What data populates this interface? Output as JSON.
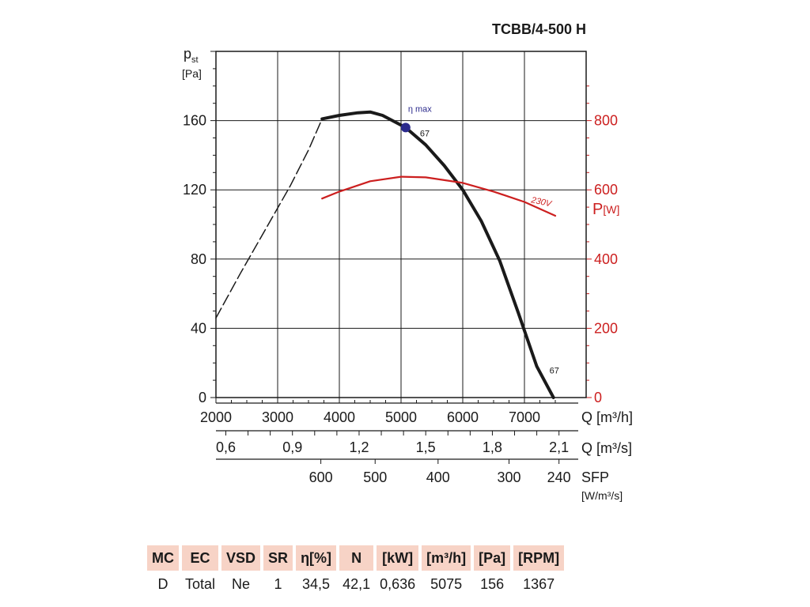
{
  "chart_data": {
    "type": "line",
    "title": "TCBB/4-500 H",
    "ylabel_main": "p",
    "ylabel_sub": "st",
    "ylabel_unit": "[Pa]",
    "ylim": [
      0,
      200
    ],
    "yticks": [
      "0",
      "40",
      "80",
      "120",
      "160"
    ],
    "ytick_values": [
      0,
      40,
      80,
      120,
      160
    ],
    "y2label_main": "P",
    "y2label_unit": "[W]",
    "y2lim": [
      0,
      1000
    ],
    "y2ticks": [
      "0",
      "200",
      "400",
      "600",
      "800"
    ],
    "y2tick_values": [
      0,
      200,
      400,
      600,
      800
    ],
    "xlim": [
      2000,
      8000
    ],
    "xticks": [
      "2000",
      "3000",
      "4000",
      "5000",
      "6000",
      "7000"
    ],
    "xtick_values": [
      2000,
      3000,
      4000,
      5000,
      6000,
      7000
    ],
    "xlabel": "Q [m³/h]",
    "x2ticks": [
      "0,6",
      "0,9",
      "1,2",
      "1,5",
      "1,8",
      "2,1"
    ],
    "x2tick_values": [
      2160,
      3240,
      4320,
      5400,
      6480,
      7560
    ],
    "x2label": "Q [m³/s]",
    "sfp_ticks": [
      "600",
      "500",
      "400",
      "300",
      "240"
    ],
    "sfp_tick_values": [
      3700,
      4580,
      5600,
      6750,
      7560
    ],
    "sfp_label": "SFP",
    "sfp_unit": "[W/m³/s]",
    "grid": true,
    "series": [
      {
        "name": "pressure-dashed",
        "axis": "y",
        "style": "dashed",
        "x": [
          2000,
          2400,
          2800,
          3200,
          3500,
          3720
        ],
        "y": [
          46,
          72,
          97,
          122,
          143,
          161
        ]
      },
      {
        "name": "pressure",
        "axis": "y",
        "style": "solid",
        "x": [
          3720,
          4000,
          4300,
          4500,
          4700,
          5075,
          5400,
          5700,
          6000,
          6300,
          6600,
          6900,
          7200,
          7470
        ],
        "y": [
          161,
          163,
          164.5,
          165,
          163,
          156,
          146,
          134,
          120,
          102,
          79,
          49,
          18,
          0
        ]
      },
      {
        "name": "power-230V",
        "axis": "y2",
        "style": "solid",
        "x": [
          3720,
          4000,
          4500,
          5000,
          5400,
          6000,
          6500,
          7000,
          7500
        ],
        "y": [
          575,
          595,
          625,
          638,
          636,
          620,
          595,
          565,
          525
        ]
      }
    ],
    "annotations": {
      "eta_max_label": "η max",
      "eta_max_point": [
        5075,
        156
      ],
      "eta_value_top": "67",
      "eta_value_bottom": "67",
      "eta_value_bottom_point": [
        7470,
        14
      ],
      "voltage_label": "230V",
      "voltage_point": [
        7000,
        575
      ]
    }
  },
  "colors": {
    "power": "#cc1f1f",
    "pressure": "#1a1a1a",
    "eta_point": "#2b2a8c",
    "table_header": "#f7d3c6"
  },
  "spec_table": {
    "headers": [
      "MC",
      "EC",
      "VSD",
      "SR",
      "η[%]",
      "N",
      "[kW]",
      "[m³/h]",
      "[Pa]",
      "[RPM]"
    ],
    "values": [
      "D",
      "Total",
      "Ne",
      "1",
      "34,5",
      "42,1",
      "0,636",
      "5075",
      "156",
      "1367"
    ]
  }
}
